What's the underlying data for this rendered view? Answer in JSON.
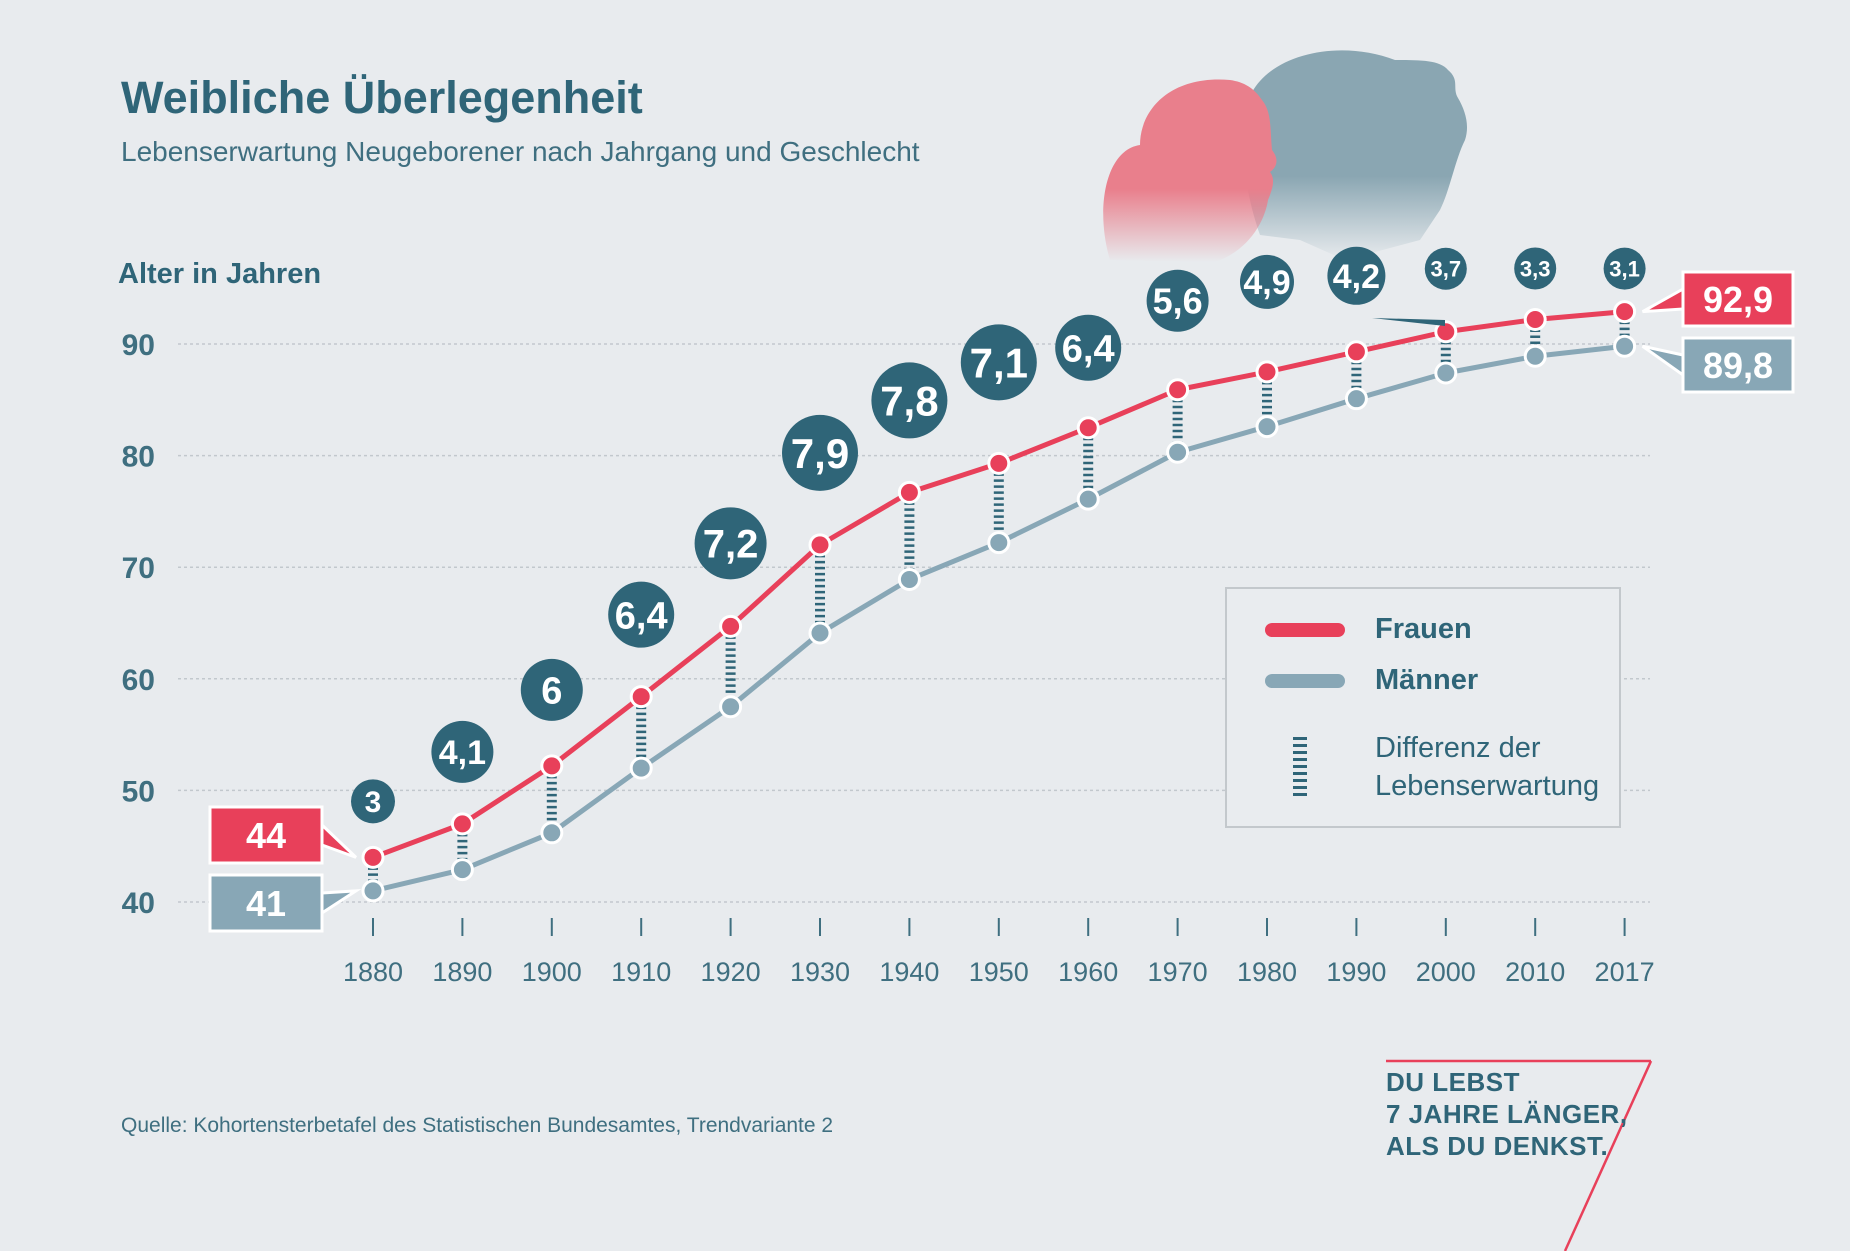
{
  "title": "Weibliche Überlegenheit",
  "subtitle": "Lebenserwartung Neugeborener nach Jahrgang und Geschlecht",
  "source": "Quelle: Kohortensterbetafel des Statistischen Bundesamtes, Trendvariante 2",
  "slogan": [
    "DU LEBST",
    "7 JAHRE LÄNGER,",
    "ALS DU DENKST."
  ],
  "legend": {
    "women": "Frauen",
    "men": "Männer",
    "diff_line1": "Differenz der",
    "diff_line2": "Lebenserwartung"
  },
  "colors": {
    "women": "#e8405a",
    "men": "#88a7b6",
    "bubble": "#2f6578",
    "axis_text": "#3f6f80",
    "silhouette_girl": "#e97f8c",
    "silhouette_man": "#8aa6b2"
  },
  "decor": {
    "girl": "girl-silhouette",
    "man": "man-silhouette"
  },
  "chart_data": {
    "type": "line",
    "title": "Weibliche Überlegenheit",
    "ylabel": "Alter in Jahren",
    "xlabel": "",
    "ylim": [
      40,
      93
    ],
    "yticks": [
      40,
      50,
      60,
      70,
      80,
      90
    ],
    "categories": [
      "1880",
      "1890",
      "1900",
      "1910",
      "1920",
      "1930",
      "1940",
      "1950",
      "1960",
      "1970",
      "1980",
      "1990",
      "2000",
      "2010",
      "2017"
    ],
    "series": [
      {
        "name": "Frauen",
        "values": [
          44,
          47,
          52.2,
          58.4,
          64.7,
          72,
          76.7,
          79.3,
          82.5,
          85.9,
          87.5,
          89.3,
          91.1,
          92.2,
          92.9
        ]
      },
      {
        "name": "Männer",
        "values": [
          41,
          42.9,
          46.2,
          52,
          57.5,
          64.1,
          68.9,
          72.2,
          76.1,
          80.3,
          82.6,
          85.1,
          87.4,
          88.9,
          89.8
        ]
      }
    ],
    "differences": [
      "3",
      "4,1",
      "6",
      "6,4",
      "7,2",
      "7,9",
      "7,8",
      "7,1",
      "6,4",
      "5,6",
      "4,9",
      "4,2",
      "3,7",
      "3,3",
      "3,1"
    ],
    "start_labels": {
      "women": "44",
      "men": "41"
    },
    "end_labels": {
      "women": "92,9",
      "men": "89,8"
    }
  }
}
